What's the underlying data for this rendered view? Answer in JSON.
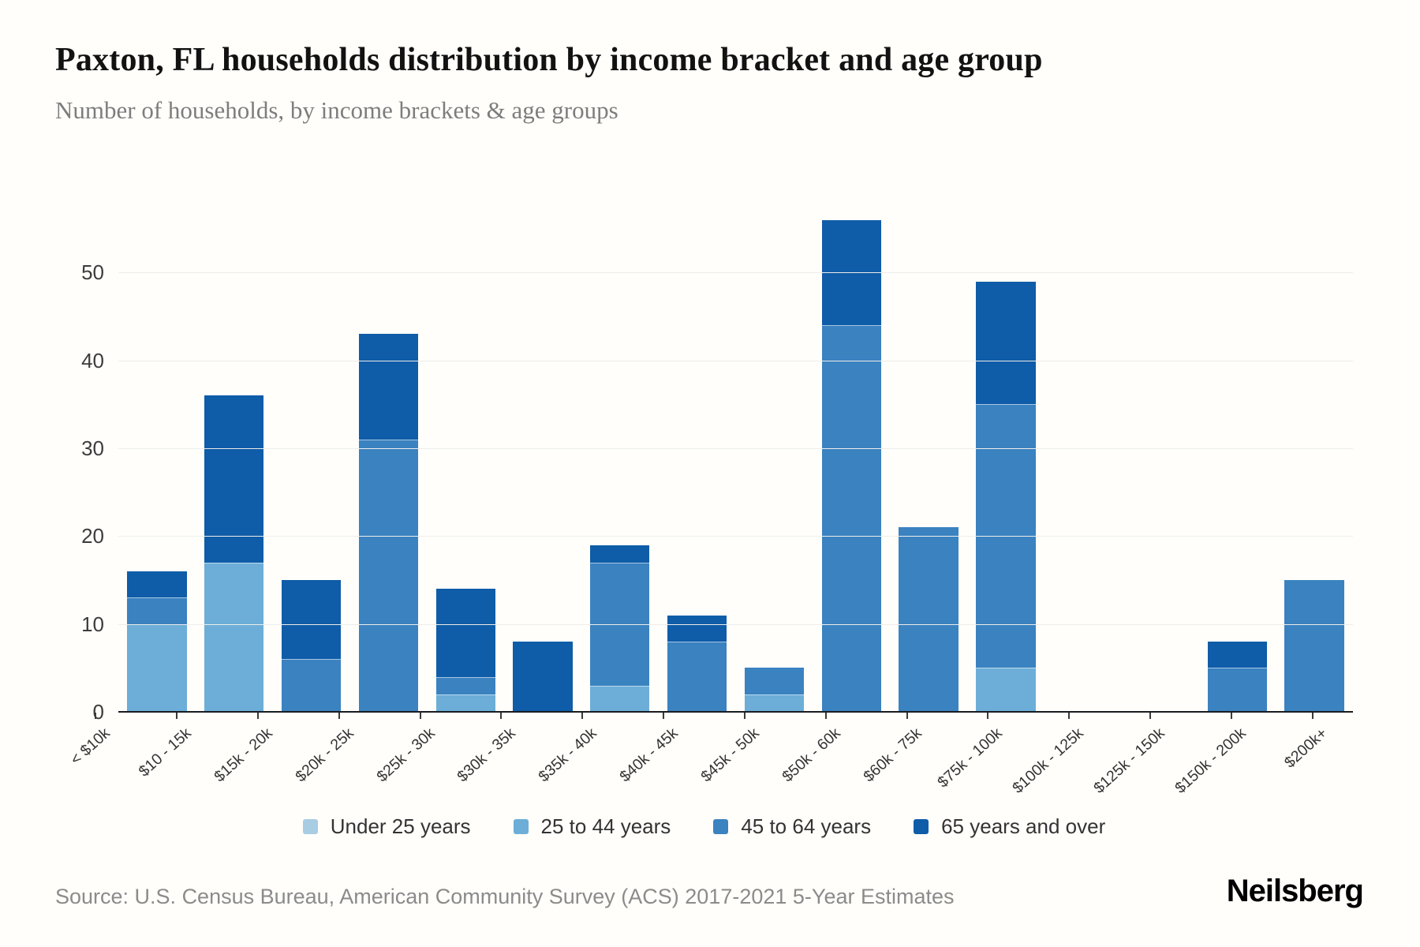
{
  "header": {
    "title": "Paxton, FL households distribution by income bracket and age group",
    "subtitle": "Number of households, by income brackets & age groups"
  },
  "chart_data": {
    "type": "bar",
    "stacked": true,
    "title": "Paxton, FL households distribution by income bracket and age group",
    "xlabel": "",
    "ylabel": "",
    "ymax": 57.5,
    "yticks": [
      0,
      10,
      20,
      30,
      40,
      50
    ],
    "grid": true,
    "legend_position": "bottom",
    "categories": [
      "< $10k",
      "$10 - 15k",
      "$15k - 20k",
      "$20k - 25k",
      "$25k - 30k",
      "$30k - 35k",
      "$35k - 40k",
      "$40k - 45k",
      "$45k - 50k",
      "$50k - 60k",
      "$60k - 75k",
      "$75k - 100k",
      "$100k - 125k",
      "$125k - 150k",
      "$150k - 200k",
      "$200k+"
    ],
    "series": [
      {
        "name": "Under 25 years",
        "color": "#a8cce2",
        "values": [
          0,
          0,
          0,
          0,
          0,
          0,
          0,
          0,
          0,
          0,
          0,
          0,
          0,
          0,
          0,
          0
        ]
      },
      {
        "name": "25 to 44 years",
        "color": "#6caed8",
        "values": [
          10,
          17,
          0,
          0,
          2,
          0,
          3,
          0,
          2,
          0,
          0,
          5,
          0,
          0,
          0,
          0
        ]
      },
      {
        "name": "45 to 64 years",
        "color": "#3b82c0",
        "values": [
          3,
          0,
          6,
          31,
          2,
          0,
          14,
          8,
          3,
          44,
          21,
          30,
          0,
          0,
          5,
          15
        ]
      },
      {
        "name": "65 years and over",
        "color": "#0f5ca8",
        "values": [
          3,
          19,
          9,
          12,
          10,
          8,
          2,
          3,
          0,
          12,
          0,
          14,
          0,
          0,
          3,
          0
        ]
      }
    ],
    "totals": [
      16,
      36,
      15,
      43,
      14,
      8,
      19,
      11,
      5,
      56,
      21,
      49,
      0,
      0,
      8,
      15
    ]
  },
  "footer": {
    "source": "Source: U.S. Census Bureau, American Community Survey (ACS) 2017-2021 5-Year Estimates",
    "brand": "Neilsberg"
  },
  "colors": {
    "axis": "#191c20",
    "gridline": "#ededeb",
    "background": "#fffefa"
  }
}
